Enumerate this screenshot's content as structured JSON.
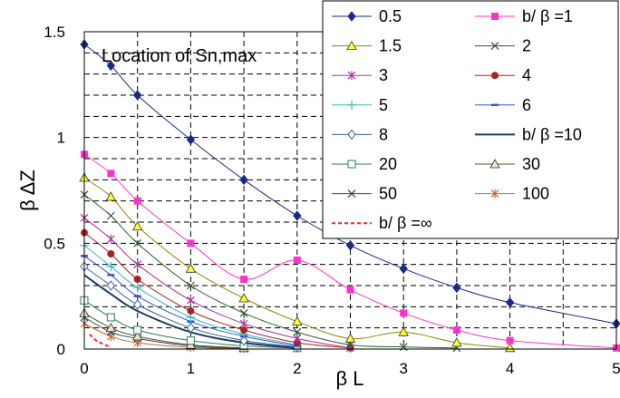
{
  "chart_data": {
    "type": "line",
    "annotation": "Location of Sn,max",
    "xlabel": "β L",
    "ylabel": "β ΔZ",
    "xlim": [
      0,
      5
    ],
    "ylim": [
      0,
      1.5
    ],
    "x_ticks": [
      "0",
      "1",
      "2",
      "3",
      "4",
      "5"
    ],
    "y_ticks": [
      "0",
      "0.5",
      "1",
      "1.5"
    ],
    "grid": true,
    "legend_position": "top-right",
    "series": [
      {
        "name": "0.5",
        "color": "#1a2a8a",
        "marker": "diamond-filled",
        "x": [
          0,
          0.25,
          0.5,
          1,
          1.5,
          2,
          2.5,
          3,
          3.5,
          4,
          5
        ],
        "y": [
          1.44,
          1.34,
          1.2,
          0.99,
          0.8,
          0.63,
          0.49,
          0.38,
          0.29,
          0.22,
          0.12
        ]
      },
      {
        "name": "b/ β =1",
        "color": "#ff33cc",
        "marker": "square-filled",
        "x": [
          0,
          0.25,
          0.5,
          1,
          1.5,
          2,
          2.5,
          3,
          3.5,
          4,
          5
        ],
        "y": [
          0.92,
          0.83,
          0.7,
          0.5,
          0.33,
          0.42,
          0.28,
          0.17,
          0.09,
          0.04,
          0.005
        ]
      },
      {
        "name": "1.5",
        "color": "#888800",
        "marker": "triangle-yellow",
        "x": [
          0,
          0.25,
          0.5,
          1,
          1.5,
          2,
          2.5,
          3,
          3.5,
          4
        ],
        "y": [
          0.81,
          0.72,
          0.58,
          0.38,
          0.24,
          0.13,
          0.05,
          0.08,
          0.03,
          0.005
        ]
      },
      {
        "name": "2",
        "color": "#2f5a2f",
        "marker": "x",
        "x": [
          0,
          0.25,
          0.5,
          1,
          1.5,
          2,
          2.5,
          3,
          3.5
        ],
        "y": [
          0.73,
          0.63,
          0.5,
          0.3,
          0.17,
          0.08,
          0.02,
          0.01,
          0.005
        ]
      },
      {
        "name": "3",
        "color": "#aa3399",
        "marker": "asterisk",
        "x": [
          0,
          0.25,
          0.5,
          1,
          1.5,
          2,
          2.5
        ],
        "y": [
          0.62,
          0.52,
          0.4,
          0.23,
          0.12,
          0.05,
          0.005
        ]
      },
      {
        "name": "4",
        "color": "#aa2222",
        "marker": "circle-filled",
        "x": [
          0,
          0.25,
          0.5,
          1,
          1.5,
          2,
          2.5
        ],
        "y": [
          0.55,
          0.45,
          0.33,
          0.18,
          0.09,
          0.03,
          0.005
        ]
      },
      {
        "name": "5",
        "color": "#33bbbb",
        "marker": "plus",
        "x": [
          0,
          0.25,
          0.5,
          1,
          1.5,
          2
        ],
        "y": [
          0.49,
          0.39,
          0.29,
          0.15,
          0.07,
          0.02
        ]
      },
      {
        "name": "6",
        "color": "#3355dd",
        "marker": "dash",
        "x": [
          0,
          0.25,
          0.5,
          1,
          1.5,
          2
        ],
        "y": [
          0.44,
          0.35,
          0.25,
          0.13,
          0.06,
          0.015
        ]
      },
      {
        "name": "8",
        "color": "#336699",
        "marker": "diamond-open",
        "x": [
          0,
          0.25,
          0.5,
          1,
          1.5,
          2
        ],
        "y": [
          0.39,
          0.3,
          0.21,
          0.1,
          0.04,
          0.01
        ]
      },
      {
        "name": "b/ β =10",
        "color": "#1f3a6a",
        "marker": "none",
        "x": [
          0,
          0.25,
          0.5,
          1,
          1.5,
          2
        ],
        "y": [
          0.35,
          0.26,
          0.18,
          0.08,
          0.03,
          0.005
        ]
      },
      {
        "name": "20",
        "color": "#2e7d5b",
        "marker": "square-open",
        "x": [
          0,
          0.25,
          0.5,
          1,
          1.5,
          2
        ],
        "y": [
          0.23,
          0.15,
          0.09,
          0.04,
          0.015,
          0.005
        ]
      },
      {
        "name": "30",
        "color": "#555522",
        "marker": "triangle-open",
        "x": [
          0,
          0.25,
          0.5,
          1,
          1.5
        ],
        "y": [
          0.17,
          0.1,
          0.06,
          0.02,
          0.005
        ]
      },
      {
        "name": "50",
        "color": "#224466",
        "marker": "x",
        "x": [
          0,
          0.25,
          0.5,
          1,
          1.5
        ],
        "y": [
          0.15,
          0.08,
          0.05,
          0.015,
          0.003
        ]
      },
      {
        "name": "100",
        "color": "#cc6633",
        "marker": "asterisk",
        "x": [
          0,
          0.25,
          0.5,
          1,
          1.5
        ],
        "y": [
          0.12,
          0.06,
          0.03,
          0.008,
          0.002
        ]
      },
      {
        "name": "b/ β =∞",
        "color": "#ff2222",
        "marker": "none",
        "dashed": true,
        "x": [
          0.05,
          0.1,
          0.15,
          0.2,
          0.25
        ],
        "y": [
          0.07,
          0.045,
          0.03,
          0.018,
          0.012
        ]
      }
    ]
  }
}
